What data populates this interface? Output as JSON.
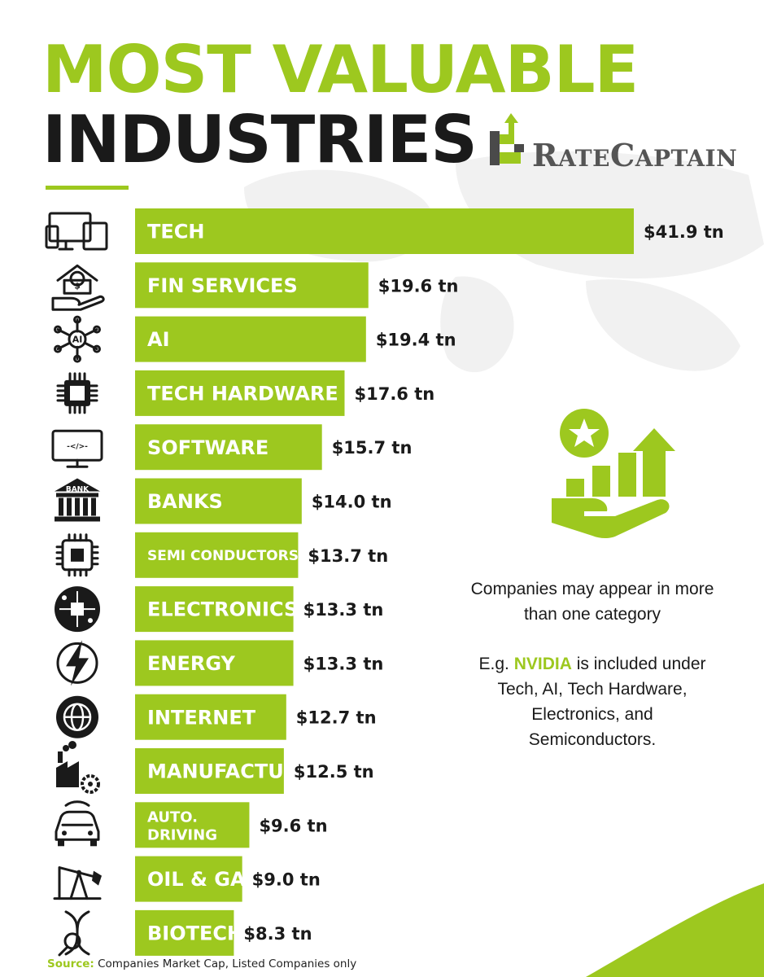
{
  "header": {
    "title_line1": "MOST VALUABLE",
    "title_line2": "INDUSTRIES",
    "logo_part1_big": "R",
    "logo_part1_small": "ATE",
    "logo_part2_big": "C",
    "logo_part2_small": "APTAIN"
  },
  "colors": {
    "accent": "#9dc81f",
    "dark": "#1a1a1a",
    "logo_gray": "#555555",
    "map": "#f1f1f1"
  },
  "chart_data": {
    "type": "bar",
    "orientation": "horizontal",
    "categories": [
      "TECH",
      "FIN SERVICES",
      "AI",
      "TECH HARDWARE",
      "SOFTWARE",
      "BANKS",
      "SEMI CONDUCTORS",
      "ELECTRONICS",
      "ENERGY",
      "INTERNET",
      "MANUFACTURING",
      "AUTO. DRIVING",
      "OIL & GAS",
      "BIOTECH"
    ],
    "values": [
      41.9,
      19.6,
      19.4,
      17.6,
      15.7,
      14.0,
      13.7,
      13.3,
      13.3,
      12.7,
      12.5,
      9.6,
      9.0,
      8.3
    ],
    "value_labels": [
      "$41.9 tn",
      "$19.6 tn",
      "$19.4 tn",
      "$17.6 tn",
      "$15.7 tn",
      "$14.0 tn",
      "$13.7 tn",
      "$13.3 tn",
      "$13.3 tn",
      "$12.7 tn",
      "$12.5 tn",
      "$9.6 tn",
      "$9.0 tn",
      "$8.3 tn"
    ],
    "icons": [
      "devices-icon",
      "finance-hand-icon",
      "ai-network-icon",
      "chip-icon",
      "code-monitor-icon",
      "bank-icon",
      "semiconductor-icon",
      "electronics-circuit-icon",
      "energy-bolt-icon",
      "globe-icon",
      "factory-icon",
      "car-icon",
      "oil-pump-icon",
      "dna-icon"
    ],
    "icon_texts": [
      "",
      "$",
      "AI",
      "",
      "-</>-",
      "BANK",
      "",
      "",
      "",
      "",
      "",
      "",
      "",
      ""
    ],
    "title": "",
    "xlabel": "",
    "ylabel": ""
  },
  "notes": {
    "note1": "Companies may appear in more than one category",
    "note2_prefix": "E.g. ",
    "note2_highlight": "NVIDIA",
    "note2_suffix": " is included under Tech, AI, Tech Hardware, Electronics, and Semiconductors.",
    "side_icon": "growth-hand-star-icon"
  },
  "source": {
    "label": "Source:",
    "text": " Companies Market Cap, Listed Companies only"
  }
}
